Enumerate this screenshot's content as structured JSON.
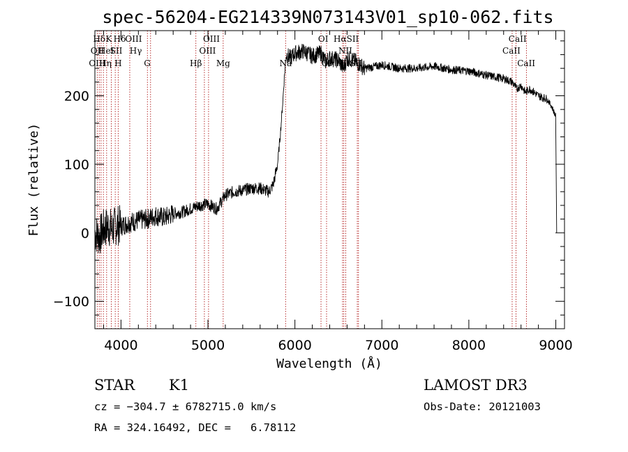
{
  "chart_data": {
    "type": "line",
    "title": "spec-56204-EG214339N073143V01_sp10-062.fits",
    "xlabel": "Wavelength (Å)",
    "ylabel": "Flux (relative)",
    "xlim": [
      3700,
      9100
    ],
    "ylim": [
      -140,
      295
    ],
    "x_ticks": [
      4000,
      5000,
      6000,
      7000,
      8000,
      9000
    ],
    "x_tick_labels": [
      "4000",
      "5000",
      "6000",
      "7000",
      "8000",
      "9000"
    ],
    "y_ticks": [
      -100,
      0,
      100,
      200
    ],
    "y_tick_labels": [
      "−100",
      "0",
      "100",
      "200"
    ],
    "series": [
      {
        "name": "spectrum",
        "x": [
          3700,
          3750,
          3800,
          3850,
          3900,
          3950,
          4000,
          4100,
          4200,
          4300,
          4400,
          4500,
          4600,
          4700,
          4800,
          4900,
          5000,
          5100,
          5200,
          5300,
          5400,
          5500,
          5600,
          5700,
          5750,
          5800,
          5830,
          5860,
          5880,
          5900,
          5950,
          6000,
          6100,
          6200,
          6300,
          6350,
          6400,
          6500,
          6560,
          6600,
          6700,
          6800,
          6900,
          7000,
          7200,
          7400,
          7600,
          7800,
          8000,
          8200,
          8400,
          8500,
          8550,
          8600,
          8650,
          8700,
          8800,
          8900,
          8950,
          9000,
          9010
        ],
        "y": [
          0,
          -5,
          5,
          10,
          5,
          12,
          10,
          15,
          18,
          20,
          25,
          22,
          28,
          30,
          35,
          40,
          42,
          35,
          55,
          60,
          62,
          65,
          65,
          60,
          70,
          100,
          140,
          190,
          230,
          260,
          255,
          262,
          265,
          258,
          262,
          250,
          255,
          252,
          240,
          255,
          250,
          240,
          242,
          245,
          240,
          240,
          243,
          238,
          236,
          230,
          225,
          220,
          210,
          215,
          205,
          210,
          200,
          195,
          185,
          170,
          0
        ]
      }
    ],
    "spectral_lines": [
      {
        "name": "Hδ",
        "wavelength": 3750,
        "row": 1
      },
      {
        "name": "K",
        "wavelength": 3860,
        "row": 1
      },
      {
        "name": "Hδ",
        "wavelength": 3985,
        "row": 1
      },
      {
        "name": "OIII",
        "wavelength": 4145,
        "row": 1
      },
      {
        "name": "OIII",
        "wavelength": 5040,
        "row": 1
      },
      {
        "name": "OI",
        "wavelength": 6325,
        "row": 1
      },
      {
        "name": "HαSII",
        "wavelength": 6590,
        "row": 1
      },
      {
        "name": "CaII",
        "wavelength": 8560,
        "row": 1
      },
      {
        "name": "OII",
        "wavelength": 3727,
        "row": 2
      },
      {
        "name": "HeI",
        "wavelength": 3830,
        "row": 2
      },
      {
        "name": "SII",
        "wavelength": 3945,
        "row": 2
      },
      {
        "name": "Hγ",
        "wavelength": 4170,
        "row": 2
      },
      {
        "name": "OIII",
        "wavelength": 4995,
        "row": 2
      },
      {
        "name": "NII",
        "wavelength": 6580,
        "row": 2
      },
      {
        "name": "CaII",
        "wavelength": 8490,
        "row": 2
      },
      {
        "name": "OIII",
        "wavelength": 3727,
        "row": 3
      },
      {
        "name": "Hη",
        "wavelength": 3820,
        "row": 3
      },
      {
        "name": "H",
        "wavelength": 3968,
        "row": 3
      },
      {
        "name": "G",
        "wavelength": 4302,
        "row": 3
      },
      {
        "name": "Hβ",
        "wavelength": 4861,
        "row": 3
      },
      {
        "name": "Mg",
        "wavelength": 5175,
        "row": 3
      },
      {
        "name": "Na",
        "wavelength": 5893,
        "row": 3
      },
      {
        "name": "OI",
        "wavelength": 6364,
        "row": 3
      },
      {
        "name": "NIISII",
        "wavelength": 6620,
        "row": 3
      },
      {
        "name": "CaII",
        "wavelength": 8660,
        "row": 3
      }
    ],
    "marker_wavelengths": [
      3727,
      3750,
      3771,
      3798,
      3835,
      3889,
      3934,
      3968,
      4101,
      4304,
      4340,
      4861,
      4959,
      5007,
      5175,
      5893,
      6300,
      6364,
      6548,
      6563,
      6584,
      6717,
      6731,
      8498,
      8542,
      8662
    ]
  },
  "info": {
    "object_class": "STAR",
    "subclass": "K1",
    "survey": "LAMOST DR3",
    "cz": "cz = −304.7 ± 6782715.0 km/s",
    "obs_date": "Obs-Date: 20121003",
    "radec": "RA = 324.16492, DEC =   6.78112"
  }
}
